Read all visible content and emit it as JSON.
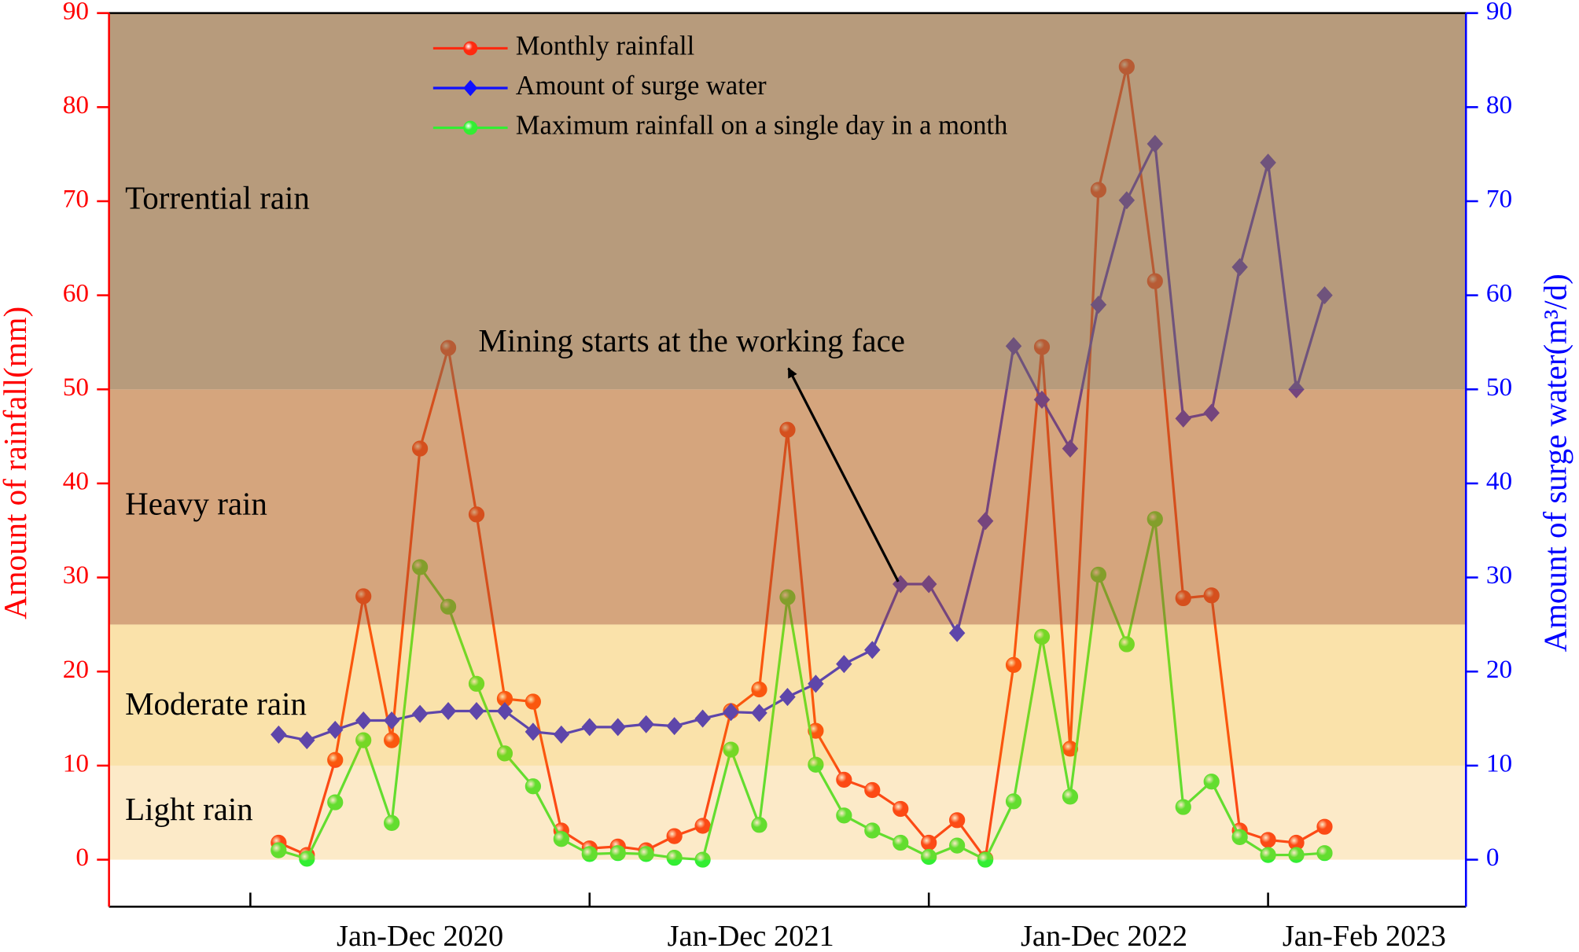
{
  "chart_data": {
    "type": "line",
    "y_label": "Amount of rainfall(mm)",
    "y2_label": "Amount of surge water(m³/d)",
    "annotation": "Mining starts at the working face",
    "x": [
      0,
      1,
      2,
      3,
      4,
      5,
      6,
      7,
      8,
      9,
      10,
      11,
      12,
      13,
      14,
      15,
      16,
      17,
      18,
      19,
      20,
      21,
      22,
      23,
      24,
      25,
      26,
      27,
      28,
      29,
      30,
      31,
      32,
      33,
      34,
      35,
      36,
      37
    ],
    "xlim": [
      -6,
      42
    ],
    "xticks": [
      -1,
      11,
      23,
      35
    ],
    "xlabels": [
      {
        "value": 5,
        "label": "Jan-Dec 2020"
      },
      {
        "value": 16.7,
        "label": "Jan-Dec 2021"
      },
      {
        "value": 29.2,
        "label": "Jan-Dec 2022"
      },
      {
        "value": 38.4,
        "label": "Jan-Feb 2023"
      }
    ],
    "ylim": [
      -5,
      90
    ],
    "yticks": [
      0,
      10,
      20,
      30,
      40,
      50,
      60,
      70,
      80,
      90
    ],
    "y2lim": [
      -5,
      90
    ],
    "y2ticks": [
      0,
      10,
      20,
      30,
      40,
      50,
      60,
      70,
      80,
      90
    ],
    "y_color": "#ff0000",
    "y2_color": "#0000ff",
    "bands": [
      {
        "label": "Light rain",
        "from": 0,
        "to": 10,
        "color": "rgba(244,172,36,0.25)"
      },
      {
        "label": "Moderate rain",
        "from": 10,
        "to": 25,
        "color": "rgba(240,171,11,0.35)"
      },
      {
        "label": "Heavy rain",
        "from": 25,
        "to": 50,
        "color": "rgba(185,105,38,0.6)"
      },
      {
        "label": "Torrential rain",
        "from": 50,
        "to": 90,
        "color": "rgba(153,113,69,0.7)"
      }
    ],
    "series": [
      {
        "name": "Monthly rainfall",
        "color": "#ff2a10",
        "marker": "circle",
        "values": [
          1.8,
          0.5,
          10.6,
          28.0,
          12.7,
          43.7,
          54.4,
          36.7,
          17.1,
          16.8,
          3.1,
          1.2,
          1.4,
          1.0,
          2.5,
          3.6,
          15.8,
          18.1,
          45.7,
          13.7,
          8.5,
          7.4,
          5.4,
          1.8,
          4.2,
          0.1,
          20.7,
          54.5,
          11.8,
          71.2,
          84.3,
          61.5,
          27.8,
          28.1,
          3.1,
          2.1,
          1.8,
          3.5
        ]
      },
      {
        "name": "Amount of surge water",
        "color": "#1010ff",
        "marker": "diamond",
        "axis": "y2",
        "values": [
          13.3,
          12.7,
          13.8,
          14.8,
          14.8,
          15.5,
          15.8,
          15.8,
          15.8,
          13.6,
          13.3,
          14.1,
          14.1,
          14.4,
          14.2,
          15.0,
          15.7,
          15.6,
          17.3,
          18.7,
          20.8,
          22.3,
          29.3,
          29.3,
          24.1,
          36.0,
          54.6,
          48.9,
          43.7,
          59.0,
          70.1,
          76.1,
          46.9,
          47.5,
          63.0,
          74.1,
          50.0,
          60.0
        ]
      },
      {
        "name": "Maximum rainfall on a single day in a month",
        "color": "#33ee33",
        "marker": "circle",
        "values": [
          1.0,
          0.1,
          6.1,
          12.7,
          3.9,
          31.1,
          26.9,
          18.7,
          11.3,
          7.8,
          2.2,
          0.6,
          0.7,
          0.6,
          0.2,
          0.0,
          11.7,
          3.7,
          27.9,
          10.1,
          4.7,
          3.1,
          1.8,
          0.3,
          1.5,
          0.0,
          6.2,
          23.7,
          6.7,
          30.3,
          22.9,
          36.2,
          5.6,
          8.3,
          2.4,
          0.5,
          0.5,
          0.7
        ]
      }
    ]
  }
}
